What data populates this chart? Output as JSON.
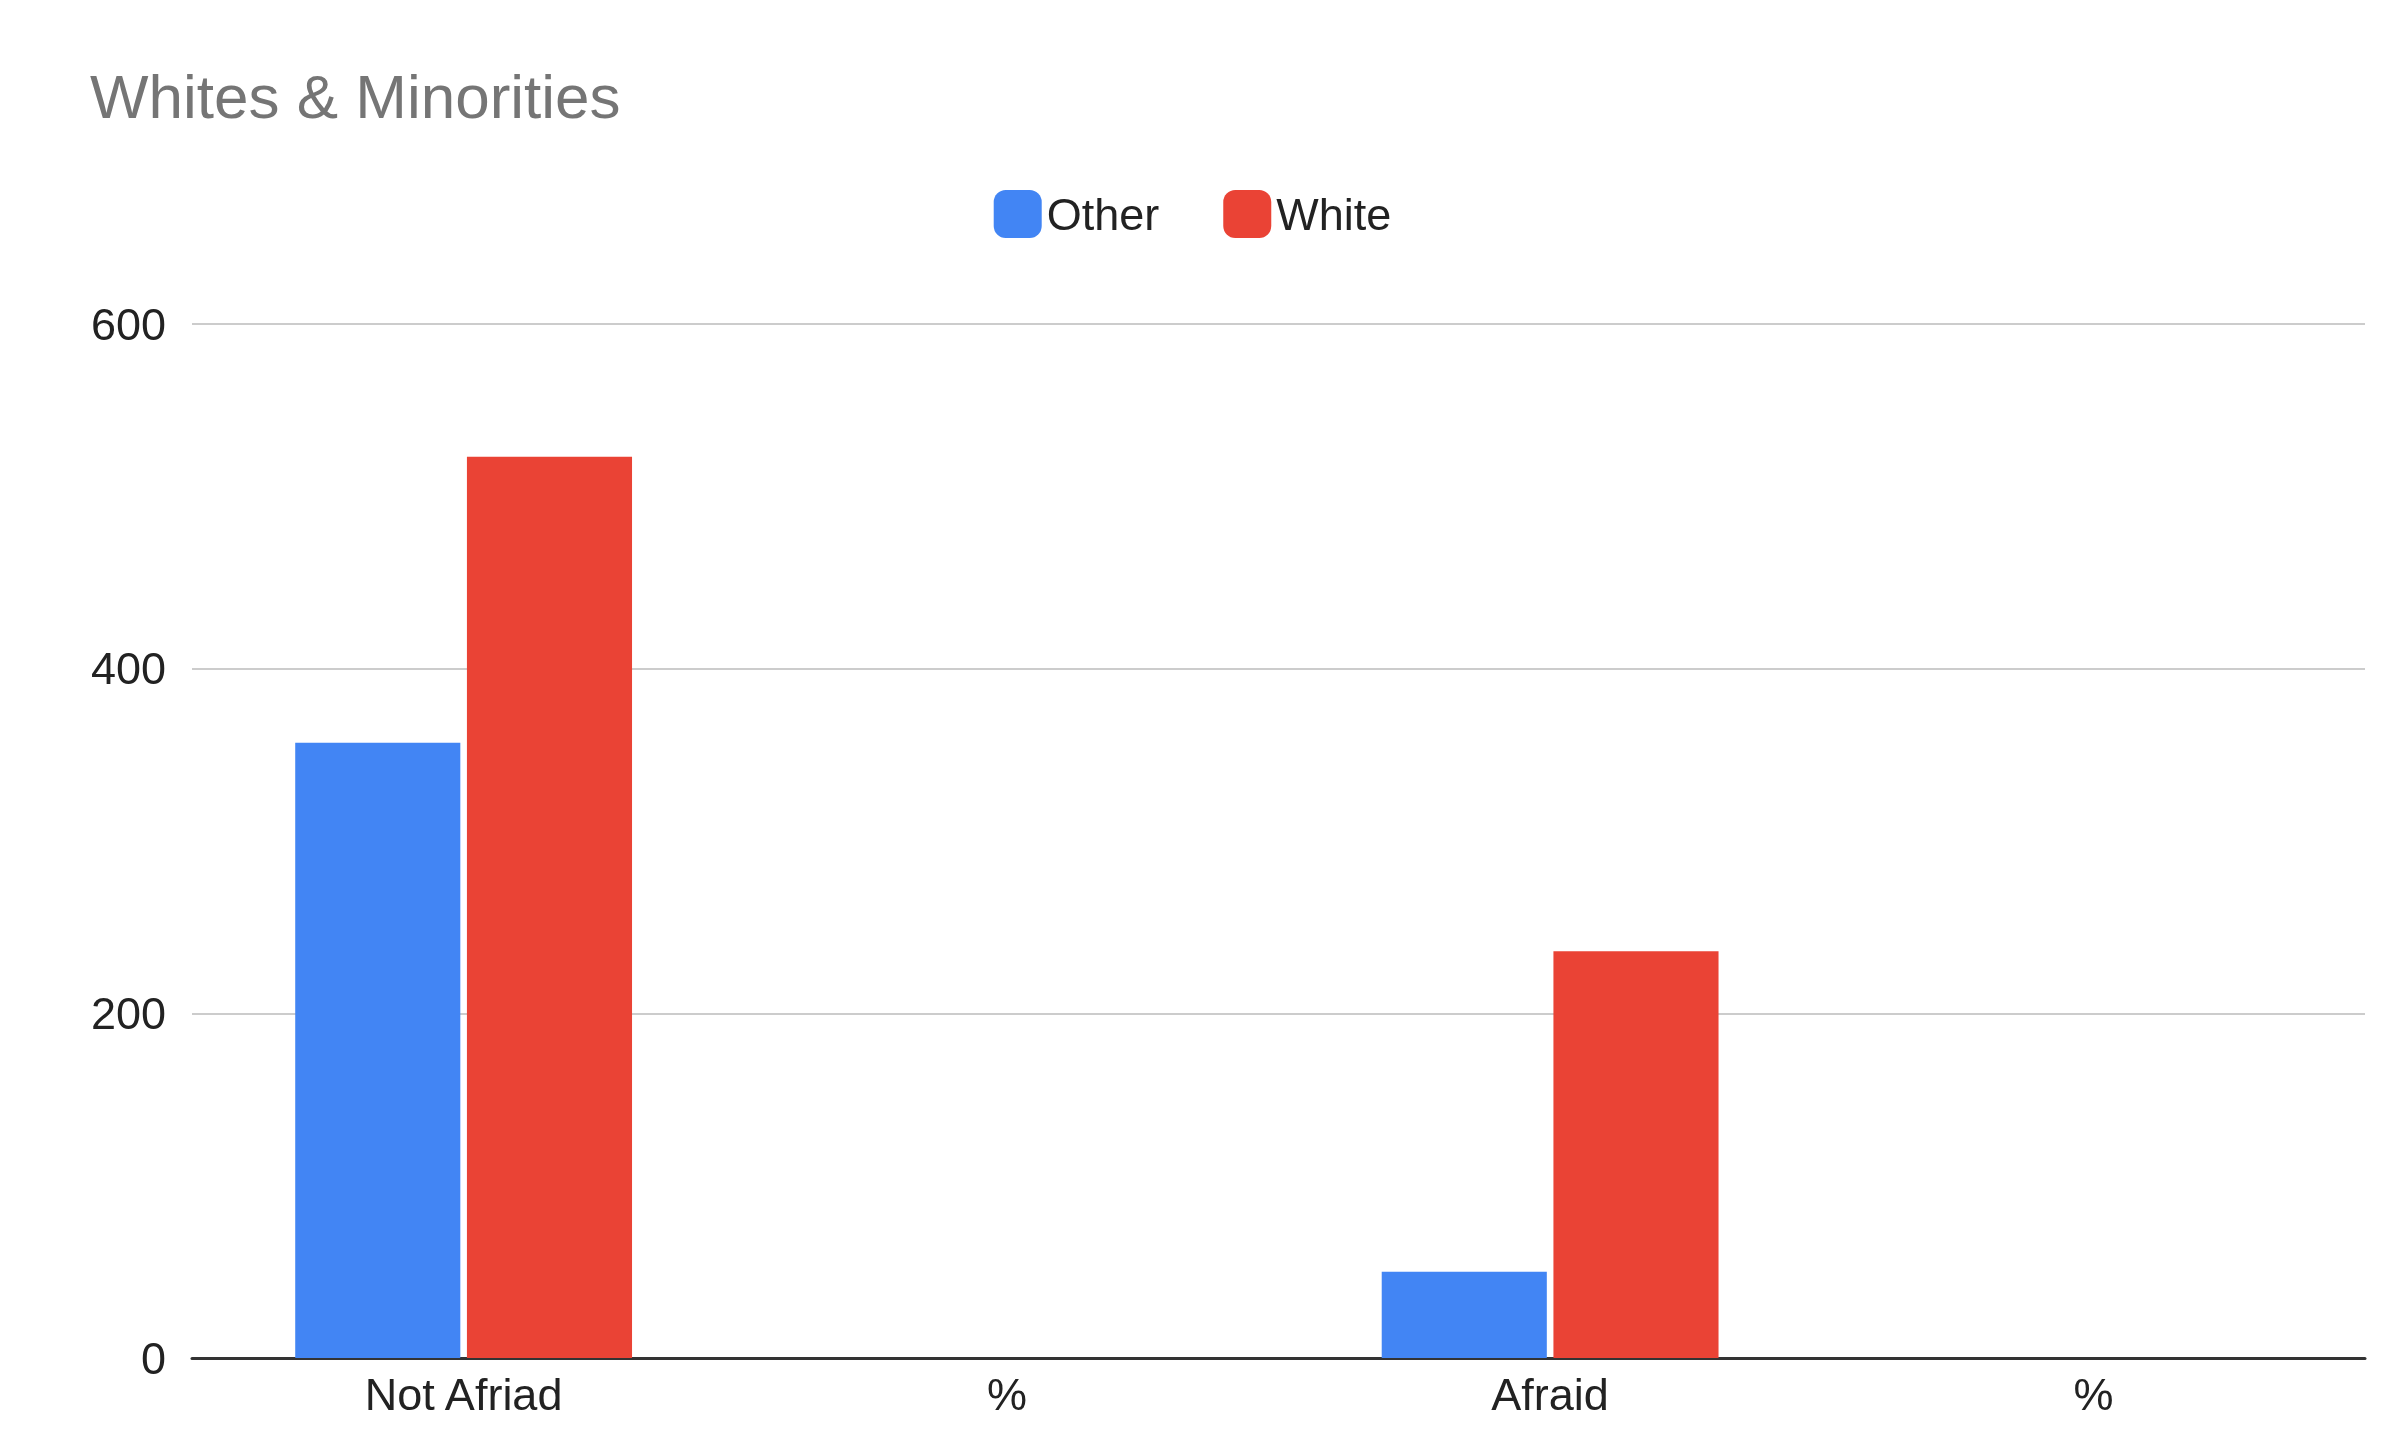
{
  "chart_data": {
    "type": "bar",
    "title": "Whites & Minorities",
    "categories": [
      "Not Afriad",
      "%",
      "Afraid",
      "%"
    ],
    "series": [
      {
        "name": "Other",
        "color": "#4285f4",
        "values": [
          357,
          null,
          50,
          null
        ]
      },
      {
        "name": "White",
        "color": "#ea4335",
        "values": [
          523,
          null,
          236,
          null
        ]
      }
    ],
    "ylim": [
      0,
      600
    ],
    "yticks": [
      0,
      200,
      400,
      600
    ],
    "grid": "y",
    "legend": "top"
  }
}
